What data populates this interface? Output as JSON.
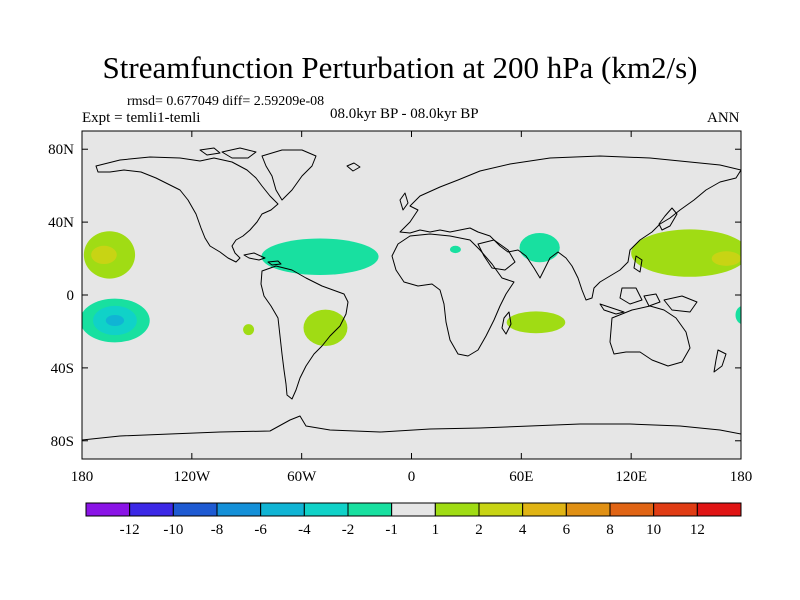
{
  "title": "Streamfunction Perturbation at 200 hPa (km2/s)",
  "stats": "rmsd= 0.677049 diff= 2.59209e-08",
  "experiment": "Expt = temli1-temli",
  "period": "08.0kyr BP - 08.0kyr BP",
  "season": "ANN",
  "map": {
    "lon_range": [
      -180,
      180
    ],
    "lat_range": [
      -90,
      90
    ],
    "lat_ticks": [
      {
        "value": 80,
        "label": "80N"
      },
      {
        "value": 40,
        "label": "40N"
      },
      {
        "value": 0,
        "label": "0"
      },
      {
        "value": -40,
        "label": "40S"
      },
      {
        "value": -80,
        "label": "80S"
      }
    ],
    "lon_ticks": [
      {
        "value": -180,
        "label": "180"
      },
      {
        "value": -120,
        "label": "120W"
      },
      {
        "value": -60,
        "label": "60W"
      },
      {
        "value": 0,
        "label": "0"
      },
      {
        "value": 60,
        "label": "60E"
      },
      {
        "value": 120,
        "label": "120E"
      },
      {
        "value": 180,
        "label": "180"
      }
    ],
    "background_color": "#e6e6e6"
  },
  "colorbar": {
    "colors": [
      "#8a14e6",
      "#3c28e6",
      "#1e5ad2",
      "#1490d8",
      "#10b4d4",
      "#10d2c8",
      "#18e0a0",
      "#e6e6e6",
      "#a0dc14",
      "#c8d414",
      "#e0b414",
      "#e09014",
      "#e06414",
      "#e03c14",
      "#e01414"
    ],
    "labels": [
      "-12",
      "-10",
      "-8",
      "-6",
      "-4",
      "-2",
      "-1",
      "1",
      "2",
      "4",
      "6",
      "8",
      "10",
      "12"
    ]
  },
  "anomalies": [
    {
      "name": "central-pacific-north",
      "color": "#a0dc14",
      "lon": -165,
      "lat": 22,
      "rlon": 14,
      "rlat": 13
    },
    {
      "name": "central-pacific-north-core",
      "color": "#c8d414",
      "lon": -168,
      "lat": 22,
      "rlon": 7,
      "rlat": 5
    },
    {
      "name": "central-pacific-south",
      "color": "#18e0a0",
      "lon": -162,
      "lat": -14,
      "rlon": 19,
      "rlat": 12
    },
    {
      "name": "central-pacific-south-mid",
      "color": "#10d2c8",
      "lon": -162,
      "lat": -14,
      "rlon": 12,
      "rlat": 8
    },
    {
      "name": "central-pacific-south-core",
      "color": "#10b4d4",
      "lon": -162,
      "lat": -14,
      "rlon": 5,
      "rlat": 3
    },
    {
      "name": "caribbean-atlantic",
      "color": "#18e0a0",
      "lon": -50,
      "lat": 21,
      "rlon": 32,
      "rlat": 10
    },
    {
      "name": "east-pacific-south",
      "color": "#a0dc14",
      "lon": -89,
      "lat": -19,
      "rlon": 3,
      "rlat": 3
    },
    {
      "name": "south-america",
      "color": "#a0dc14",
      "lon": -47,
      "lat": -18,
      "rlon": 12,
      "rlat": 10
    },
    {
      "name": "north-africa",
      "color": "#18e0a0",
      "lon": 24,
      "lat": 25,
      "rlon": 3,
      "rlat": 2
    },
    {
      "name": "arabia-india",
      "color": "#18e0a0",
      "lon": 70,
      "lat": 26,
      "rlon": 11,
      "rlat": 8
    },
    {
      "name": "indian-ocean",
      "color": "#a0dc14",
      "lon": 68,
      "lat": -15,
      "rlon": 16,
      "rlat": 6
    },
    {
      "name": "west-pacific",
      "color": "#a0dc14",
      "lon": 152,
      "lat": 23,
      "rlon": 32,
      "rlat": 13
    },
    {
      "name": "west-pacific-core",
      "color": "#c8d414",
      "lon": 172,
      "lat": 20,
      "rlon": 8,
      "rlat": 4
    },
    {
      "name": "east-edge-south",
      "color": "#18e0a0",
      "lon": 181,
      "lat": -11,
      "rlon": 4,
      "rlat": 5
    }
  ]
}
